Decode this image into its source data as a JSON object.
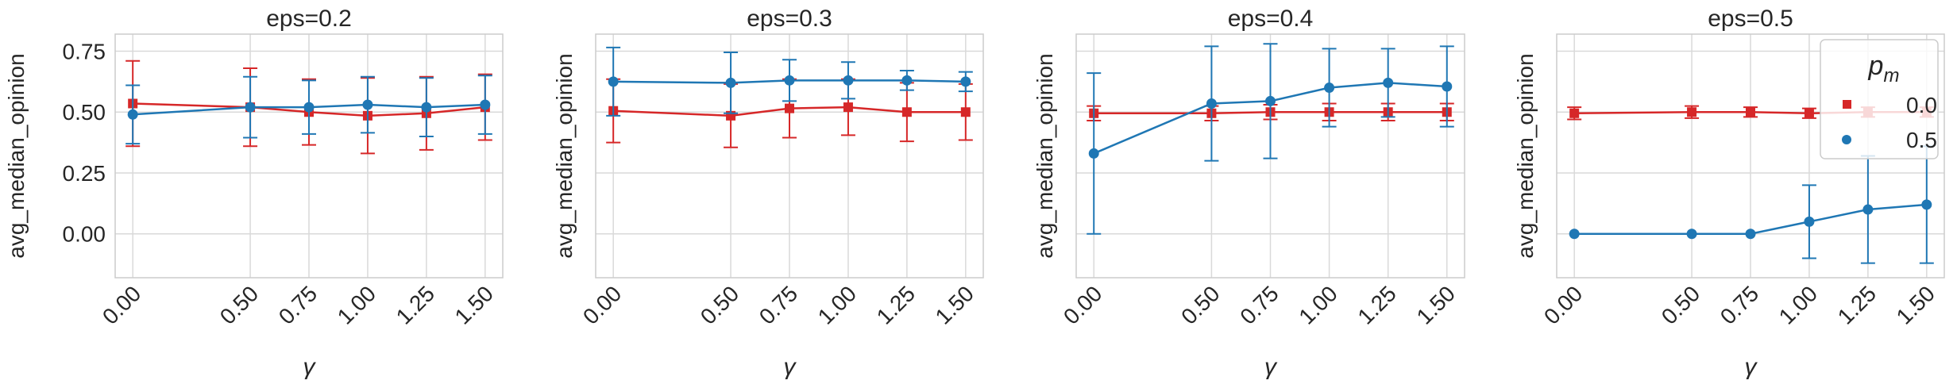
{
  "chart_data": [
    {
      "type": "line",
      "title": "eps=0.2",
      "xlabel": "γ",
      "ylabel": "avg_median_opinion",
      "x": [
        0.0,
        0.5,
        0.75,
        1.0,
        1.25,
        1.5
      ],
      "x_tick_labels": [
        "0.00",
        "0.50",
        "0.75",
        "1.00",
        "1.25",
        "1.50"
      ],
      "y_ticks": [
        0.0,
        0.25,
        0.5,
        0.75
      ],
      "y_tick_labels": [
        "0.00",
        "0.25",
        "0.50",
        "0.75"
      ],
      "show_y_tick_labels": true,
      "ylim": [
        -0.18,
        0.82
      ],
      "grid": true,
      "series": [
        {
          "name": "0.0",
          "color": "#d62728",
          "marker": "square",
          "values": [
            0.535,
            0.52,
            0.5,
            0.485,
            0.495,
            0.52
          ],
          "errors": [
            0.175,
            0.16,
            0.135,
            0.155,
            0.15,
            0.135
          ]
        },
        {
          "name": "0.5",
          "color": "#1f77b4",
          "marker": "circle",
          "values": [
            0.49,
            0.52,
            0.52,
            0.53,
            0.52,
            0.53
          ],
          "errors": [
            0.12,
            0.125,
            0.11,
            0.115,
            0.12,
            0.12
          ]
        }
      ]
    },
    {
      "type": "line",
      "title": "eps=0.3",
      "xlabel": "γ",
      "ylabel": "avg_median_opinion",
      "x": [
        0.0,
        0.5,
        0.75,
        1.0,
        1.25,
        1.5
      ],
      "x_tick_labels": [
        "0.00",
        "0.50",
        "0.75",
        "1.00",
        "1.25",
        "1.50"
      ],
      "y_ticks": [
        0.0,
        0.25,
        0.5,
        0.75
      ],
      "y_tick_labels": [
        "",
        "",
        "",
        ""
      ],
      "show_y_tick_labels": false,
      "ylim": [
        -0.18,
        0.82
      ],
      "grid": true,
      "series": [
        {
          "name": "0.0",
          "color": "#d62728",
          "marker": "square",
          "values": [
            0.505,
            0.485,
            0.515,
            0.52,
            0.5,
            0.5
          ],
          "errors": [
            0.13,
            0.13,
            0.12,
            0.115,
            0.12,
            0.115
          ]
        },
        {
          "name": "0.5",
          "color": "#1f77b4",
          "marker": "circle",
          "values": [
            0.625,
            0.62,
            0.63,
            0.63,
            0.63,
            0.625
          ],
          "errors": [
            0.14,
            0.125,
            0.085,
            0.075,
            0.04,
            0.04
          ]
        }
      ]
    },
    {
      "type": "line",
      "title": "eps=0.4",
      "xlabel": "γ",
      "ylabel": "avg_median_opinion",
      "x": [
        0.0,
        0.5,
        0.75,
        1.0,
        1.25,
        1.5
      ],
      "x_tick_labels": [
        "0.00",
        "0.50",
        "0.75",
        "1.00",
        "1.25",
        "1.50"
      ],
      "y_ticks": [
        0.0,
        0.25,
        0.5,
        0.75
      ],
      "y_tick_labels": [
        "",
        "",
        "",
        ""
      ],
      "show_y_tick_labels": false,
      "ylim": [
        -0.18,
        0.82
      ],
      "grid": true,
      "series": [
        {
          "name": "0.0",
          "color": "#d62728",
          "marker": "square",
          "values": [
            0.495,
            0.495,
            0.5,
            0.5,
            0.5,
            0.5
          ],
          "errors": [
            0.03,
            0.03,
            0.03,
            0.035,
            0.035,
            0.035
          ]
        },
        {
          "name": "0.5",
          "color": "#1f77b4",
          "marker": "circle",
          "values": [
            0.33,
            0.535,
            0.545,
            0.6,
            0.62,
            0.605
          ],
          "errors": [
            0.33,
            0.235,
            0.235,
            0.16,
            0.14,
            0.165
          ]
        }
      ]
    },
    {
      "type": "line",
      "title": "eps=0.5",
      "xlabel": "γ",
      "ylabel": "avg_median_opinion",
      "x": [
        0.0,
        0.5,
        0.75,
        1.0,
        1.25,
        1.5
      ],
      "x_tick_labels": [
        "0.00",
        "0.50",
        "0.75",
        "1.00",
        "1.25",
        "1.50"
      ],
      "y_ticks": [
        0.0,
        0.25,
        0.5,
        0.75
      ],
      "y_tick_labels": [
        "",
        "",
        "",
        ""
      ],
      "show_y_tick_labels": false,
      "ylim": [
        -0.18,
        0.82
      ],
      "grid": true,
      "series": [
        {
          "name": "0.0",
          "color": "#d62728",
          "marker": "square",
          "values": [
            0.495,
            0.5,
            0.5,
            0.495,
            0.5,
            0.5
          ],
          "errors": [
            0.025,
            0.025,
            0.02,
            0.02,
            0.02,
            0.02
          ]
        },
        {
          "name": "0.5",
          "color": "#1f77b4",
          "marker": "circle",
          "values": [
            0.0,
            0.0,
            0.0,
            0.05,
            0.1,
            0.12
          ],
          "errors": [
            0.0,
            0.0,
            0.0,
            0.15,
            0.22,
            0.24
          ]
        }
      ]
    }
  ],
  "legend": {
    "title": "p_m",
    "title_main": "p",
    "title_sub": "m",
    "placement": "top-right of last panel",
    "entries": [
      {
        "label": "0.0",
        "color": "#d62728",
        "marker": "square"
      },
      {
        "label": "0.5",
        "color": "#1f77b4",
        "marker": "circle"
      }
    ]
  }
}
